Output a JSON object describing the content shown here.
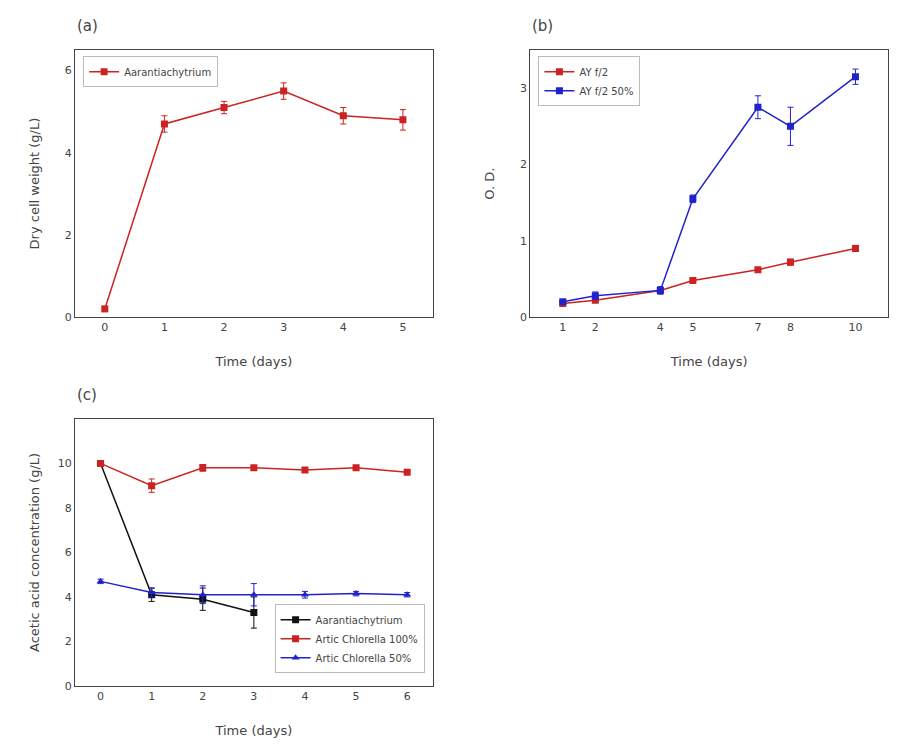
{
  "chart_data": [
    {
      "type": "line",
      "title": "(a)",
      "xlabel": "Time (days)",
      "ylabel": "Dry cell weight (g/L)",
      "x": [
        0,
        1,
        2,
        3,
        4,
        5
      ],
      "xlim": [
        -0.5,
        5.5
      ],
      "xticks": [
        0,
        1,
        2,
        3,
        4,
        5
      ],
      "ylim": [
        0,
        6.5
      ],
      "yticks": [
        0,
        2,
        4,
        6
      ],
      "grid": false,
      "legend": "upper left",
      "series": [
        {
          "name": "Aarantiachytrium",
          "color": "#cc2222",
          "marker": "square",
          "values": [
            0.2,
            4.7,
            5.1,
            5.5,
            4.9,
            4.8
          ],
          "yerr": [
            0.05,
            0.2,
            0.15,
            0.2,
            0.2,
            0.25
          ]
        }
      ]
    },
    {
      "type": "line",
      "title": "(b)",
      "xlabel": "Time (days)",
      "ylabel": "O. D.",
      "x": [
        1,
        2,
        4,
        5,
        7,
        8,
        10
      ],
      "xlim": [
        0,
        11
      ],
      "xticks": [
        1,
        2,
        4,
        5,
        7,
        8,
        10
      ],
      "ylim": [
        0,
        3.5
      ],
      "yticks": [
        0,
        1,
        2,
        3
      ],
      "grid": false,
      "legend": "upper left",
      "series": [
        {
          "name": "AY f/2",
          "color": "#cc2222",
          "marker": "square",
          "values": [
            0.18,
            0.22,
            0.35,
            0.48,
            0.62,
            0.72,
            0.9
          ],
          "yerr": [
            0.02,
            0.02,
            0.03,
            0.03,
            0.03,
            0.04,
            0.04
          ]
        },
        {
          "name": "AY f/2 50%",
          "color": "#2222cc",
          "marker": "square",
          "values": [
            0.2,
            0.28,
            0.35,
            1.55,
            2.75,
            2.5,
            3.15
          ],
          "yerr": [
            0.02,
            0.05,
            0.05,
            0.05,
            0.15,
            0.25,
            0.1
          ]
        }
      ]
    },
    {
      "type": "line",
      "title": "(c)",
      "xlabel": "Time (days)",
      "ylabel": "Acetic acid concentration (g/L)",
      "x": [
        0,
        1,
        2,
        3,
        4,
        5,
        6
      ],
      "xlim": [
        -0.5,
        6.5
      ],
      "xticks": [
        0,
        1,
        2,
        3,
        4,
        5,
        6
      ],
      "ylim": [
        0,
        12
      ],
      "yticks": [
        0,
        2,
        4,
        6,
        8,
        10
      ],
      "grid": false,
      "legend": "lower right",
      "series": [
        {
          "name": "Aarantiachytrium",
          "color": "#111111",
          "marker": "square",
          "values": [
            10.0,
            4.1,
            3.9,
            3.3,
            null,
            null,
            null
          ],
          "yerr": [
            0.0,
            0.3,
            0.5,
            0.7,
            0,
            0,
            0
          ]
        },
        {
          "name": "Artic Chlorella 100%",
          "color": "#cc2222",
          "marker": "square",
          "values": [
            10.0,
            9.0,
            9.8,
            9.8,
            9.7,
            9.8,
            9.6
          ],
          "yerr": [
            0.1,
            0.3,
            0.15,
            0.1,
            0.1,
            0.1,
            0.1
          ]
        },
        {
          "name": "Artic Chlorella 50%",
          "color": "#2222cc",
          "marker": "triangle-up",
          "values": [
            4.7,
            4.2,
            4.1,
            4.1,
            4.1,
            4.15,
            4.1
          ],
          "yerr": [
            0.1,
            0.2,
            0.4,
            0.5,
            0.15,
            0.1,
            0.1
          ]
        }
      ]
    }
  ]
}
